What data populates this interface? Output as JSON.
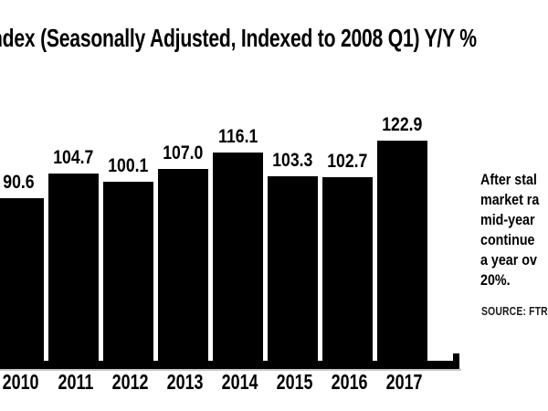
{
  "title": "ndex (Seasonally Adjusted, Indexed to 2008 Q1) Y/Y %",
  "chart_data": {
    "type": "bar",
    "categories": [
      "2010",
      "2011",
      "2012",
      "2013",
      "2014",
      "2015",
      "2016",
      "2017"
    ],
    "values": [
      90.6,
      104.7,
      100.1,
      107.0,
      116.1,
      103.3,
      102.7,
      122.9
    ],
    "value_labels": [
      "90.6",
      "104.7",
      "100.1",
      "107.0",
      "116.1",
      "103.3",
      "102.7",
      "122.9"
    ],
    "title": "ndex (Seasonally Adjusted, Indexed to 2008 Q1) Y/Y %",
    "xlabel": "",
    "ylabel": "",
    "ylim": [
      0,
      135
    ],
    "bar_color": "#000000",
    "grid": false,
    "legend": false,
    "value_labels_position": "above-bars"
  },
  "annotation": {
    "lines": [
      "After stal",
      "market ra",
      "mid-year",
      "continue",
      "a year ov",
      "20%."
    ]
  },
  "source": "SOURCE: FTR"
}
